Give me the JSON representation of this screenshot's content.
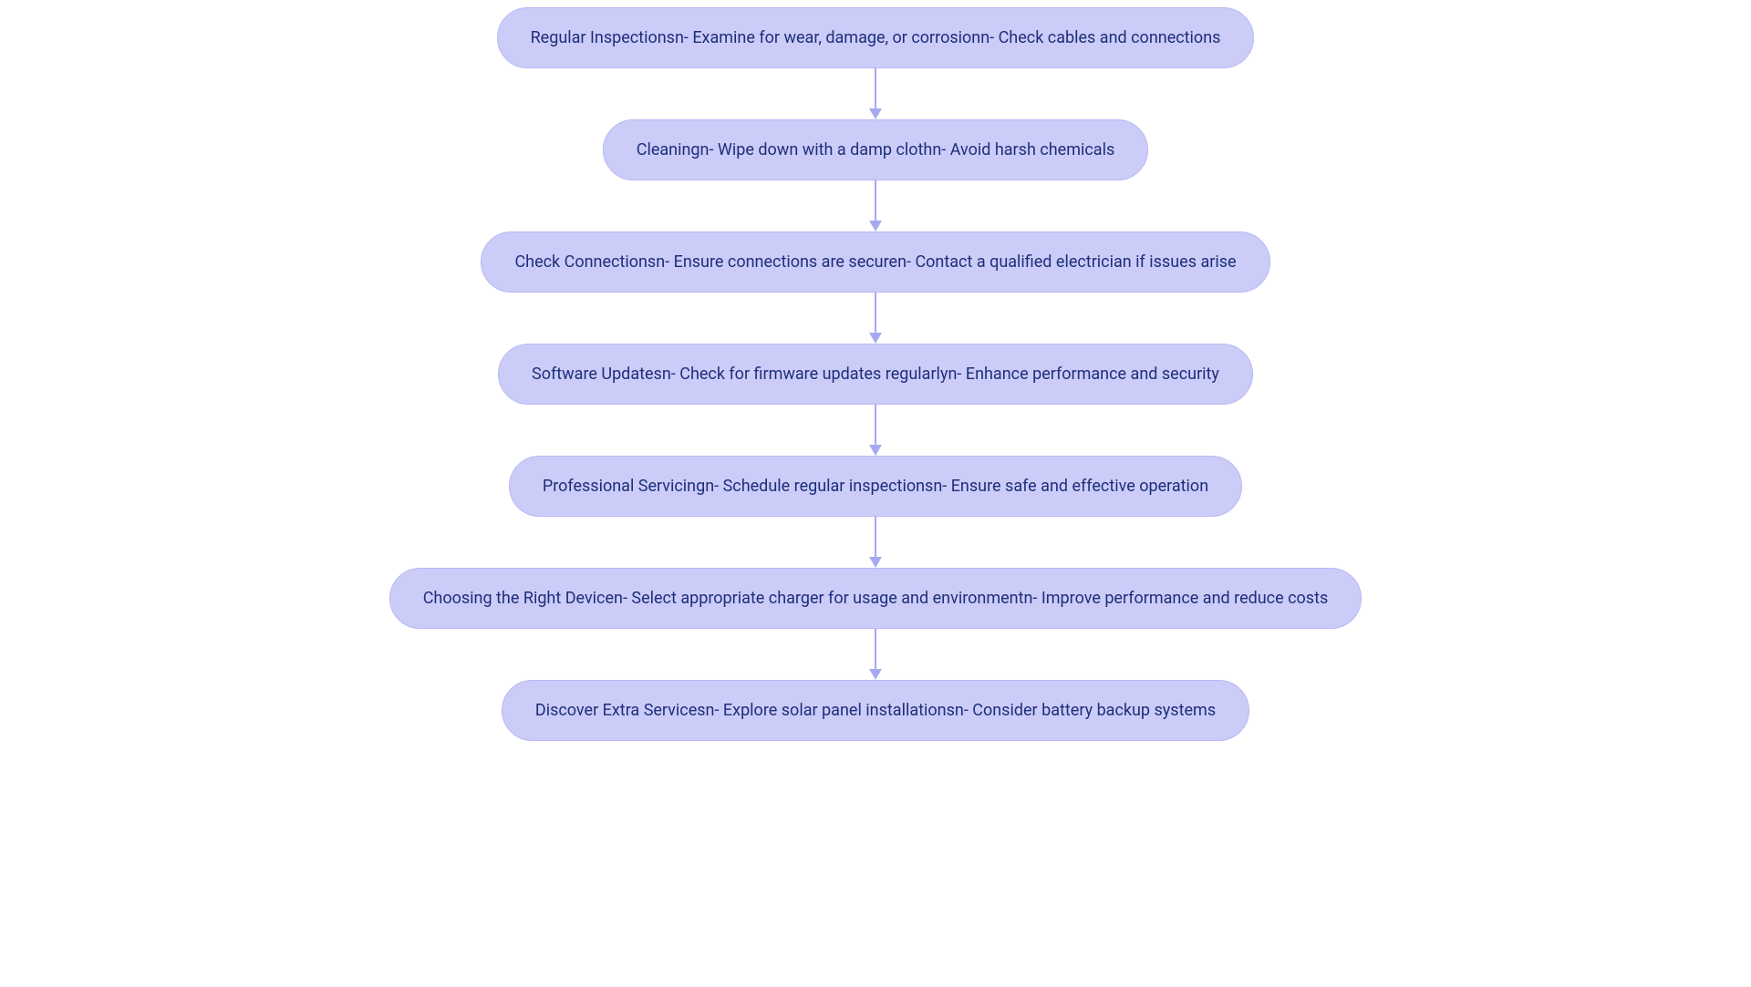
{
  "flowchart": {
    "type": "flowchart",
    "direction": "vertical",
    "background_color": "#ffffff",
    "node_style": {
      "fill": "#ccccf8",
      "stroke": "#b8b8f5",
      "text_color": "#1d2f7a",
      "font_size": 18,
      "border_radius": 100,
      "shape": "stadium"
    },
    "arrow_style": {
      "color": "#a8a8f0",
      "width": 2,
      "head_size": 12
    },
    "nodes": [
      {
        "id": "n1",
        "label": "Regular Inspectionsn- Examine for wear, damage, or corrosionn- Check cables and connections"
      },
      {
        "id": "n2",
        "label": "Cleaningn- Wipe down with a damp clothn- Avoid harsh chemicals"
      },
      {
        "id": "n3",
        "label": "Check Connectionsn- Ensure connections are securen- Contact a qualified electrician if issues arise"
      },
      {
        "id": "n4",
        "label": "Software Updatesn- Check for firmware updates regularlyn- Enhance performance and security"
      },
      {
        "id": "n5",
        "label": "Professional Servicingn- Schedule regular inspectionsn- Ensure safe and effective operation"
      },
      {
        "id": "n6",
        "label": "Choosing the Right Devicen- Select appropriate charger for usage and environmentn- Improve performance and reduce costs"
      },
      {
        "id": "n7",
        "label": "Discover Extra Servicesn- Explore solar panel installationsn- Consider battery backup systems"
      }
    ],
    "edges": [
      {
        "from": "n1",
        "to": "n2"
      },
      {
        "from": "n2",
        "to": "n3"
      },
      {
        "from": "n3",
        "to": "n4"
      },
      {
        "from": "n4",
        "to": "n5"
      },
      {
        "from": "n5",
        "to": "n6"
      },
      {
        "from": "n6",
        "to": "n7"
      }
    ]
  }
}
